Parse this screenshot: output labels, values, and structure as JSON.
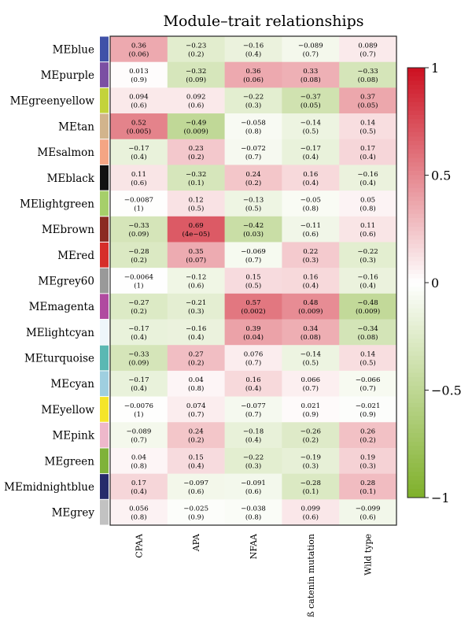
{
  "chart_data": {
    "type": "heatmap",
    "title": "Module–trait relationships",
    "rows": [
      "MEblue",
      "MEpurple",
      "MEgreenyellow",
      "MEtan",
      "MEsalmon",
      "MEblack",
      "MElightgreen",
      "MEbrown",
      "MEred",
      "MEgrey60",
      "MEmagenta",
      "MElightcyan",
      "MEturquoise",
      "MEcyan",
      "MEyellow",
      "MEpink",
      "MEgreen",
      "MEmidnightblue",
      "MEgrey"
    ],
    "row_colors": [
      "#3f51a8",
      "#7b4fa3",
      "#c3d33a",
      "#d2b48c",
      "#f4a584",
      "#111111",
      "#a6cf6a",
      "#8b2a22",
      "#d62e2a",
      "#999999",
      "#b04aa0",
      "#eef6fb",
      "#5bb8b3",
      "#9fcfe0",
      "#f5e52a",
      "#eeb8cb",
      "#7fb23a",
      "#262b6b",
      "#c2c2c2"
    ],
    "columns": [
      "CPAA",
      "APA",
      "NFAA",
      "ß catenin mutation",
      "Wild type"
    ],
    "values": [
      [
        0.36,
        -0.23,
        -0.16,
        -0.089,
        0.089
      ],
      [
        0.013,
        -0.32,
        0.36,
        0.33,
        -0.33
      ],
      [
        0.094,
        0.092,
        -0.22,
        -0.37,
        0.37
      ],
      [
        0.52,
        -0.49,
        -0.058,
        -0.14,
        0.14
      ],
      [
        -0.17,
        0.23,
        -0.072,
        -0.17,
        0.17
      ],
      [
        0.11,
        -0.32,
        0.24,
        0.16,
        -0.16
      ],
      [
        -0.0087,
        0.12,
        -0.13,
        -0.05,
        0.05
      ],
      [
        -0.33,
        0.69,
        -0.42,
        -0.11,
        0.11
      ],
      [
        -0.28,
        0.35,
        -0.069,
        0.22,
        -0.22
      ],
      [
        -0.0064,
        -0.12,
        0.15,
        0.16,
        -0.16
      ],
      [
        -0.27,
        -0.21,
        0.57,
        0.48,
        -0.48
      ],
      [
        -0.17,
        -0.16,
        0.39,
        0.34,
        -0.34
      ],
      [
        -0.33,
        0.27,
        0.076,
        -0.14,
        0.14
      ],
      [
        -0.17,
        0.04,
        0.16,
        0.066,
        -0.066
      ],
      [
        -0.0076,
        0.074,
        -0.077,
        0.021,
        -0.021
      ],
      [
        -0.089,
        0.24,
        -0.18,
        -0.26,
        0.26
      ],
      [
        0.04,
        0.15,
        -0.22,
        -0.19,
        0.19
      ],
      [
        0.17,
        -0.097,
        -0.091,
        -0.28,
        0.28
      ],
      [
        0.056,
        -0.025,
        -0.038,
        0.099,
        -0.099
      ]
    ],
    "value_labels": [
      [
        "0.36",
        "−0.23",
        "−0.16",
        "−0.089",
        "0.089"
      ],
      [
        "0.013",
        "−0.32",
        "0.36",
        "0.33",
        "−0.33"
      ],
      [
        "0.094",
        "0.092",
        "−0.22",
        "−0.37",
        "0.37"
      ],
      [
        "0.52",
        "−0.49",
        "−0.058",
        "−0.14",
        "0.14"
      ],
      [
        "−0.17",
        "0.23",
        "−0.072",
        "−0.17",
        "0.17"
      ],
      [
        "0.11",
        "−0.32",
        "0.24",
        "0.16",
        "−0.16"
      ],
      [
        "−0.0087",
        "0.12",
        "−0.13",
        "−0.05",
        "0.05"
      ],
      [
        "−0.33",
        "0.69",
        "−0.42",
        "−0.11",
        "0.11"
      ],
      [
        "−0.28",
        "0.35",
        "−0.069",
        "0.22",
        "−0.22"
      ],
      [
        "−0.0064",
        "−0.12",
        "0.15",
        "0.16",
        "−0.16"
      ],
      [
        "−0.27",
        "−0.21",
        "0.57",
        "0.48",
        "−0.48"
      ],
      [
        "−0.17",
        "−0.16",
        "0.39",
        "0.34",
        "−0.34"
      ],
      [
        "−0.33",
        "0.27",
        "0.076",
        "−0.14",
        "0.14"
      ],
      [
        "−0.17",
        "0.04",
        "0.16",
        "0.066",
        "−0.066"
      ],
      [
        "−0.0076",
        "0.074",
        "−0.077",
        "0.021",
        "−0.021"
      ],
      [
        "−0.089",
        "0.24",
        "−0.18",
        "−0.26",
        "0.26"
      ],
      [
        "0.04",
        "0.15",
        "−0.22",
        "−0.19",
        "0.19"
      ],
      [
        "0.17",
        "−0.097",
        "−0.091",
        "−0.28",
        "0.28"
      ],
      [
        "0.056",
        "−0.025",
        "−0.038",
        "0.099",
        "−0.099"
      ]
    ],
    "pvalues": [
      [
        "(0.06)",
        "(0.2)",
        "(0.4)",
        "(0.7)",
        "(0.7)"
      ],
      [
        "(0.9)",
        "(0.09)",
        "(0.06)",
        "(0.08)",
        "(0.08)"
      ],
      [
        "(0.6)",
        "(0.6)",
        "(0.3)",
        "(0.05)",
        "(0.05)"
      ],
      [
        "(0.005)",
        "(0.009)",
        "(0.8)",
        "(0.5)",
        "(0.5)"
      ],
      [
        "(0.4)",
        "(0.2)",
        "(0.7)",
        "(0.4)",
        "(0.4)"
      ],
      [
        "(0.6)",
        "(0.1)",
        "(0.2)",
        "(0.4)",
        "(0.4)"
      ],
      [
        "(1)",
        "(0.5)",
        "(0.5)",
        "(0.8)",
        "(0.8)"
      ],
      [
        "(0.09)",
        "(4e−05)",
        "(0.03)",
        "(0.6)",
        "(0.6)"
      ],
      [
        "(0.2)",
        "(0.07)",
        "(0.7)",
        "(0.3)",
        "(0.3)"
      ],
      [
        "(1)",
        "(0.6)",
        "(0.5)",
        "(0.4)",
        "(0.4)"
      ],
      [
        "(0.2)",
        "(0.3)",
        "(0.002)",
        "(0.009)",
        "(0.009)"
      ],
      [
        "(0.4)",
        "(0.4)",
        "(0.04)",
        "(0.08)",
        "(0.08)"
      ],
      [
        "(0.09)",
        "(0.2)",
        "(0.7)",
        "(0.5)",
        "(0.5)"
      ],
      [
        "(0.4)",
        "(0.8)",
        "(0.4)",
        "(0.7)",
        "(0.7)"
      ],
      [
        "(1)",
        "(0.7)",
        "(0.7)",
        "(0.9)",
        "(0.9)"
      ],
      [
        "(0.7)",
        "(0.2)",
        "(0.4)",
        "(0.2)",
        "(0.2)"
      ],
      [
        "(0.8)",
        "(0.4)",
        "(0.3)",
        "(0.3)",
        "(0.3)"
      ],
      [
        "(0.4)",
        "(0.6)",
        "(0.6)",
        "(0.1)",
        "(0.1)"
      ],
      [
        "(0.8)",
        "(0.9)",
        "(0.8)",
        "(0.6)",
        "(0.6)"
      ]
    ],
    "colorscale": {
      "range": [
        -1,
        1
      ],
      "low_color": "#7fb02a",
      "mid_color": "#ffffff",
      "high_color": "#cc1020",
      "ticks": [
        1,
        0.5,
        0,
        -0.5,
        -1
      ],
      "tick_labels": [
        "1",
        "0.5",
        "0",
        "−0.5",
        "−1"
      ]
    },
    "legend": "right"
  }
}
